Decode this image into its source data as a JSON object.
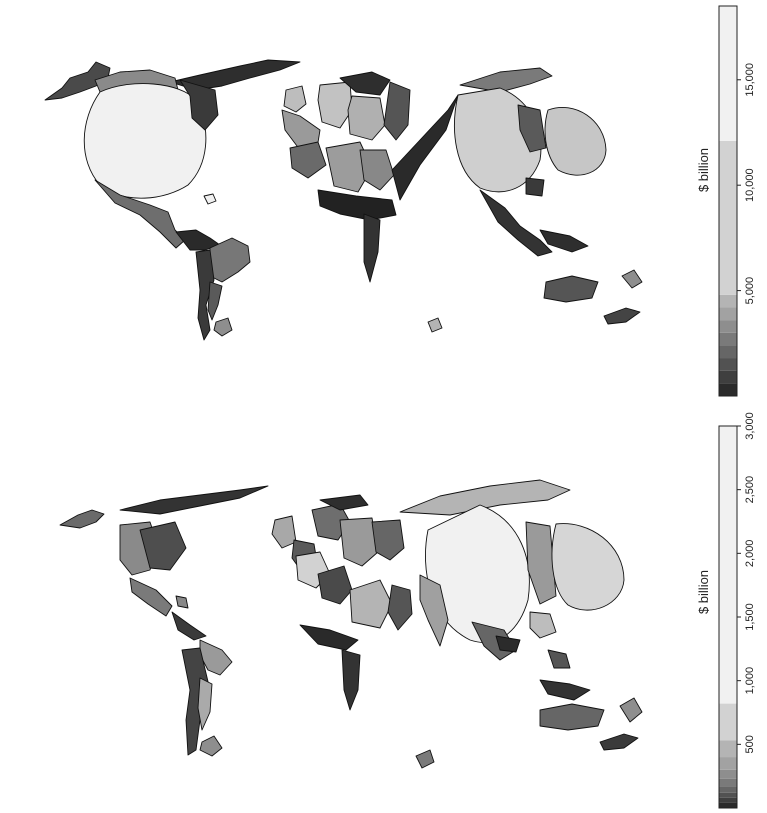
{
  "maps": [
    {
      "name": "top-cartogram",
      "legend": {
        "title": "$ billion",
        "ticks": [
          "5,000",
          "10,000",
          "15,000"
        ],
        "tick_values": [
          5000,
          10000,
          15000
        ],
        "range": [
          0,
          18500
        ],
        "bands": [
          {
            "from": 0,
            "to": 600,
            "color": "#2b2b2b"
          },
          {
            "from": 600,
            "to": 1200,
            "color": "#3f3f3f"
          },
          {
            "from": 1200,
            "to": 1800,
            "color": "#525252"
          },
          {
            "from": 1800,
            "to": 2400,
            "color": "#666666"
          },
          {
            "from": 2400,
            "to": 3000,
            "color": "#7a7a7a"
          },
          {
            "from": 3000,
            "to": 3600,
            "color": "#8e8e8e"
          },
          {
            "from": 3600,
            "to": 4200,
            "color": "#a2a2a2"
          },
          {
            "from": 4200,
            "to": 4800,
            "color": "#b4b4b4"
          },
          {
            "from": 4800,
            "to": 12100,
            "color": "#d2d2d2"
          },
          {
            "from": 12100,
            "to": 18500,
            "color": "#f1f1f1"
          }
        ]
      }
    },
    {
      "name": "bottom-cartogram",
      "legend": {
        "title": "$ billion",
        "ticks": [
          "500",
          "1,000",
          "1,500",
          "2,000",
          "2,500",
          "3,000"
        ],
        "tick_values": [
          500,
          1000,
          1500,
          2000,
          2500,
          3000
        ],
        "range": [
          0,
          3000
        ],
        "bands": [
          {
            "from": 0,
            "to": 40,
            "color": "#2b2b2b"
          },
          {
            "from": 40,
            "to": 80,
            "color": "#3f3f3f"
          },
          {
            "from": 80,
            "to": 120,
            "color": "#525252"
          },
          {
            "from": 120,
            "to": 170,
            "color": "#666666"
          },
          {
            "from": 170,
            "to": 230,
            "color": "#7a7a7a"
          },
          {
            "from": 230,
            "to": 300,
            "color": "#8e8e8e"
          },
          {
            "from": 300,
            "to": 400,
            "color": "#a2a2a2"
          },
          {
            "from": 400,
            "to": 530,
            "color": "#b4b4b4"
          },
          {
            "from": 530,
            "to": 820,
            "color": "#d2d2d2"
          },
          {
            "from": 820,
            "to": 3000,
            "color": "#f1f1f1"
          }
        ]
      }
    }
  ]
}
